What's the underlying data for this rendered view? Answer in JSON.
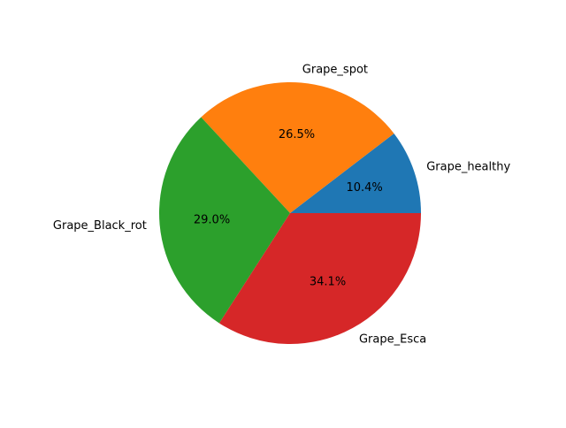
{
  "chart_data": {
    "type": "pie",
    "title": "",
    "start_angle_deg": 0,
    "direction": "counterclockwise",
    "slices": [
      {
        "label": "Grape_healthy",
        "value": 10.4,
        "pct_label": "10.4%",
        "color": "#1f77b4"
      },
      {
        "label": "Grape_spot",
        "value": 26.5,
        "pct_label": "26.5%",
        "color": "#ff7f0e"
      },
      {
        "label": "Grape_Black_rot",
        "value": 29.0,
        "pct_label": "29.0%",
        "color": "#2ca02c"
      },
      {
        "label": "Grape_Esca",
        "value": 34.1,
        "pct_label": "34.1%",
        "color": "#d62728"
      }
    ]
  }
}
